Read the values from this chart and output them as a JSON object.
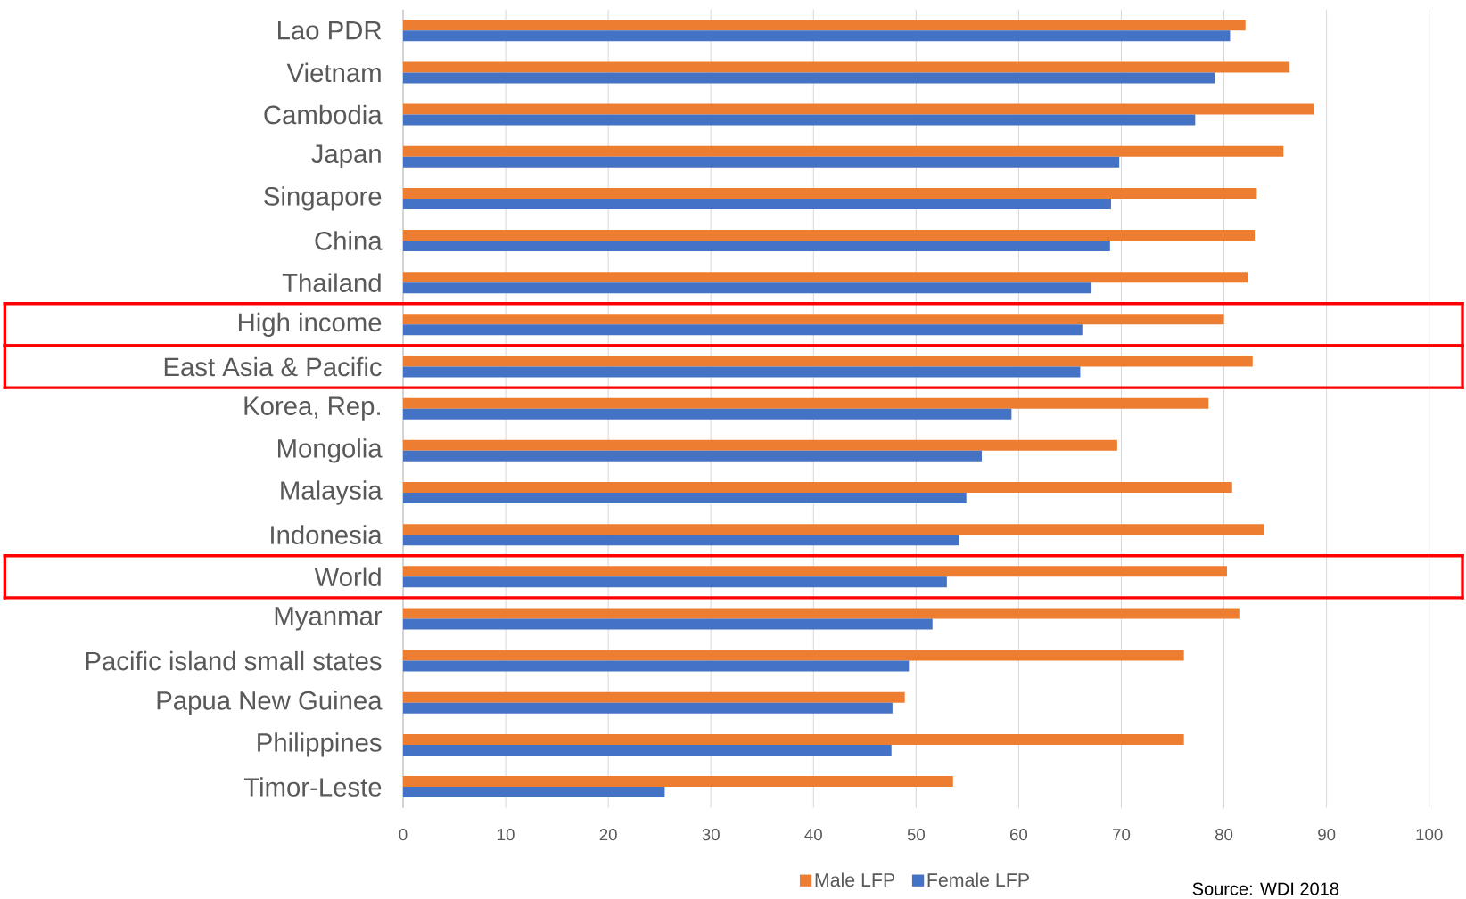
{
  "chart_data": {
    "type": "bar",
    "orientation": "horizontal",
    "categories": [
      "Lao PDR",
      "Vietnam",
      "Cambodia",
      "Japan",
      "Singapore",
      "China",
      "Thailand",
      "High income",
      "East Asia & Pacific",
      "Korea, Rep.",
      "Mongolia",
      "Malaysia",
      "Indonesia",
      "World",
      "Myanmar",
      "Pacific island small states",
      "Papua New Guinea",
      "Philippines",
      "Timor-Leste"
    ],
    "series": [
      {
        "name": "Male LFP",
        "color": "#ed7d31",
        "values": [
          82.1,
          86.4,
          88.8,
          85.8,
          83.2,
          83.0,
          82.3,
          80.0,
          82.8,
          78.5,
          69.6,
          80.8,
          83.9,
          80.3,
          81.5,
          76.1,
          48.9,
          76.1,
          53.6
        ]
      },
      {
        "name": "Female LFP",
        "color": "#4472c4",
        "values": [
          80.6,
          79.1,
          77.2,
          69.8,
          69.0,
          68.9,
          67.1,
          66.2,
          66.0,
          59.3,
          56.4,
          54.9,
          54.2,
          53.0,
          51.6,
          49.3,
          47.7,
          47.6,
          25.5
        ]
      }
    ],
    "xlim": [
      0,
      100
    ],
    "xticks": [
      0,
      10,
      20,
      30,
      40,
      50,
      60,
      70,
      80,
      90,
      100
    ],
    "grid": "x",
    "legend": "bottom",
    "annotations": [
      "Source: WDI 2018"
    ]
  }
}
